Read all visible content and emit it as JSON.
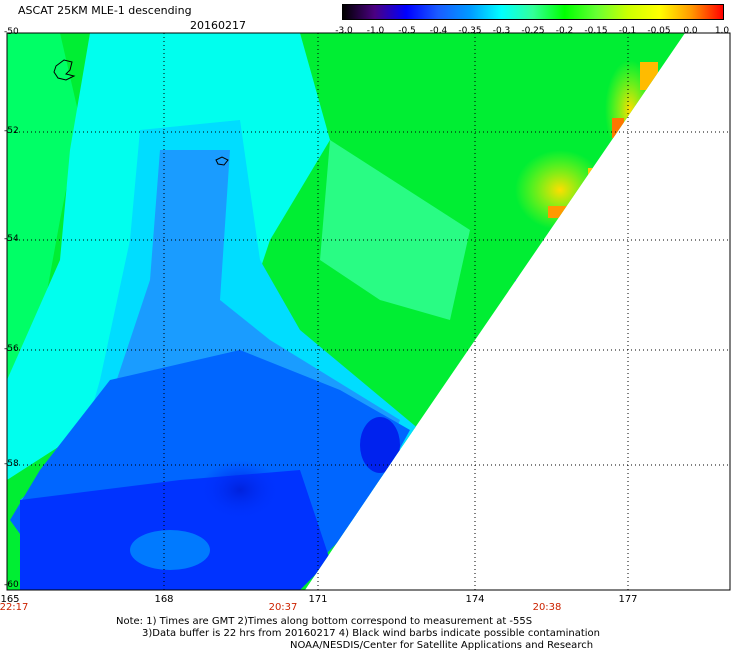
{
  "header": {
    "title": "ASCAT 25KM MLE-1 descending",
    "date": "20160217"
  },
  "colorbar": {
    "ticks": [
      "-3.0",
      "-1.0",
      "-0.5",
      "-0.4",
      "-0.35",
      "-0.3",
      "-0.25",
      "-0.2",
      "-0.15",
      "-0.1",
      "-0.05",
      "0.0",
      "1.0"
    ],
    "colors": [
      "#000000",
      "#4b0082",
      "#0000ff",
      "#1a5cff",
      "#0099ff",
      "#00ffff",
      "#33ff99",
      "#00ff00",
      "#66ff33",
      "#ccff00",
      "#ffff00",
      "#ff9900",
      "#ff0000"
    ]
  },
  "axes": {
    "lat_labels": [
      "-50",
      "-52",
      "-54",
      "-56",
      "-58",
      "-60"
    ],
    "lon_labels": [
      "165",
      "168",
      "171",
      "174",
      "177"
    ],
    "time_labels": [
      "22:17",
      "20:37",
      "20:38"
    ]
  },
  "notes": {
    "line1": "Note: 1) Times are GMT 2)Times along bottom correspond to measurement at -55S",
    "line2": "3)Data buffer is 22 hrs from 20160217 4) Black wind barbs indicate possible contamination",
    "line3": "NOAA/NESDIS/Center for Satellite Applications and Research"
  }
}
